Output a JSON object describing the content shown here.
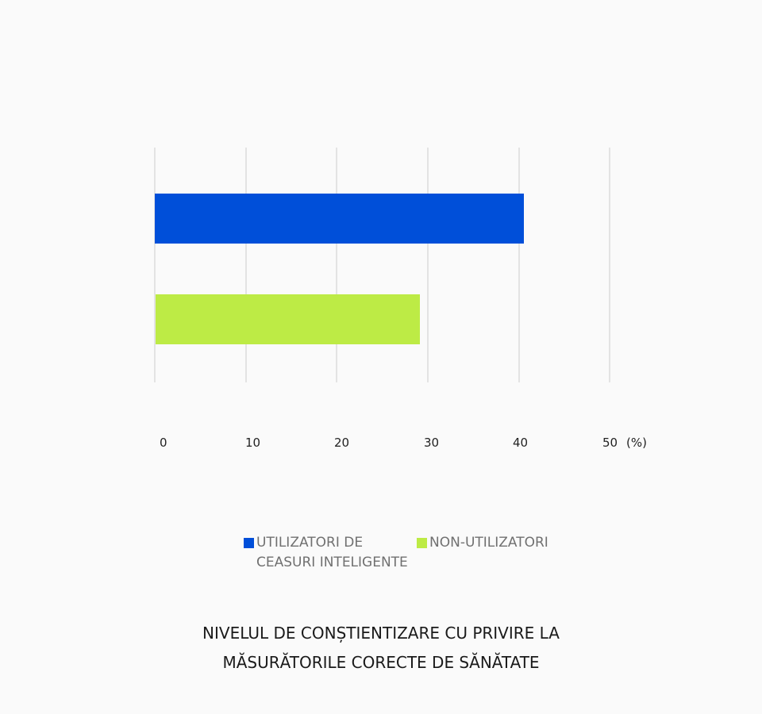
{
  "chart_data": {
    "type": "bar",
    "orientation": "horizontal",
    "title": "NIVELUL DE CONȘTIENTIZARE CU PRIVIRE LA MĂSURĂTORILE CORECTE DE SĂNĂTATE",
    "title_lines": [
      "NIVELUL DE CONȘTIENTIZARE CU PRIVIRE LA",
      "MĂSURĂTORILE CORECTE DE SĂNĂTATE"
    ],
    "categories": [
      "UTILIZATORI DE CEASURI INTELIGENTE",
      "NON-UTILIZATORI"
    ],
    "values": [
      40.5,
      29.1
    ],
    "series": [
      {
        "name": "UTILIZATORI DE CEASURI INTELIGENTE",
        "color": "#004fd9",
        "value": 40.5
      },
      {
        "name": "NON-UTILIZATORI",
        "color": "#bdeb45",
        "value": 29.1
      }
    ],
    "xlabel": "(%)",
    "ylabel": "",
    "xlim": [
      0,
      50
    ],
    "x_ticks": [
      "0",
      "10",
      "20",
      "30",
      "40",
      "50"
    ],
    "grid": true,
    "legend_position": "bottom"
  },
  "axis": {
    "ticks": [
      "0",
      "10",
      "20",
      "30",
      "40",
      "50"
    ],
    "unit": "(%)"
  },
  "legend": {
    "items": [
      {
        "line1": "UTILIZATORI DE",
        "line2": "CEASURI INTELIGENTE",
        "color": "#004fd9"
      },
      {
        "line1": "NON-UTILIZATORI",
        "line2": "",
        "color": "#bdeb45"
      }
    ]
  },
  "title": {
    "line1": "NIVELUL DE CONȘTIENTIZARE CU PRIVIRE LA",
    "line2": "MĂSURĂTORILE CORECTE DE SĂNĂTATE"
  }
}
